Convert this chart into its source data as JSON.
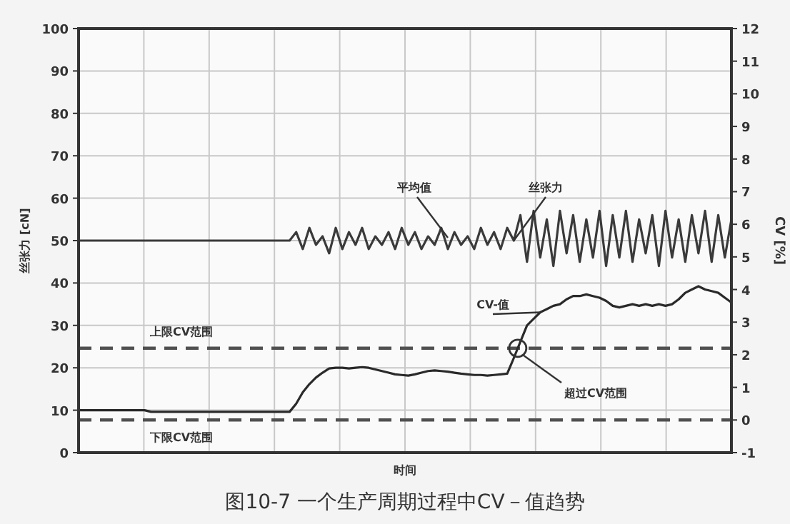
{
  "chart_data": {
    "type": "line",
    "title": "图10-7  一个生产周期过程中CV－值趋势",
    "xlabel": "时间",
    "ylabel": "丝张力 [cN]",
    "y2label": "CV [%]",
    "categories": [
      null,
      null,
      null,
      null,
      null,
      null,
      null,
      null,
      null,
      null,
      null,
      null,
      null,
      null,
      null,
      null,
      null,
      null,
      null,
      null,
      null,
      null,
      null,
      null,
      null,
      null,
      null,
      null,
      null,
      null,
      null,
      null,
      null,
      null,
      null,
      null,
      null,
      null,
      null,
      null,
      null,
      null,
      null,
      null,
      null,
      null,
      null,
      null,
      null,
      null,
      null,
      null,
      null,
      null,
      null,
      null,
      null,
      null,
      null,
      null,
      null,
      null,
      null,
      null,
      null,
      null,
      null,
      null,
      null,
      null,
      null,
      null,
      null,
      null,
      null,
      null,
      null,
      null,
      null,
      null,
      null,
      null,
      null,
      null,
      null,
      null,
      null,
      null,
      null,
      null,
      null,
      null,
      null,
      null,
      null,
      null,
      null,
      null,
      null,
      null
    ],
    "ylim": [
      0,
      100
    ],
    "yticks": [
      0,
      10,
      20,
      30,
      40,
      50,
      60,
      70,
      80,
      90,
      100
    ],
    "y2lim": [
      -1,
      12
    ],
    "y2ticks": [
      -1,
      0,
      1,
      2,
      3,
      4,
      5,
      6,
      7,
      8,
      9,
      10,
      11,
      12
    ],
    "grid": true,
    "series": [
      {
        "name": "丝张力",
        "color": "#3a3a3a",
        "values": [
          50,
          50,
          50,
          50,
          50,
          50,
          50,
          50,
          50,
          50,
          50,
          50,
          50,
          50,
          50,
          50,
          50,
          50,
          50,
          50,
          50,
          50,
          50,
          50,
          50,
          50,
          50,
          50,
          50,
          50,
          50,
          50,
          50,
          52,
          48,
          53,
          49,
          51,
          47,
          53,
          48,
          52,
          49,
          53,
          48,
          51,
          49,
          52,
          48,
          53,
          49,
          52,
          48,
          51,
          49,
          53,
          48,
          52,
          49,
          51,
          48,
          53,
          49,
          52,
          48,
          53,
          50,
          56,
          45,
          57,
          46,
          55,
          44,
          57,
          47,
          56,
          45,
          55,
          46,
          57,
          44,
          56,
          46,
          57,
          45,
          55,
          47,
          56,
          44,
          57,
          46,
          55,
          45,
          56,
          47,
          57,
          45,
          56,
          46,
          55
        ]
      },
      {
        "name": "CV-值",
        "color": "#2a2a2a",
        "axis": "y2",
        "values": [
          0.3,
          0.3,
          0.3,
          0.3,
          0.3,
          0.3,
          0.3,
          0.3,
          0.3,
          0.3,
          0.3,
          0.25,
          0.25,
          0.25,
          0.25,
          0.25,
          0.25,
          0.25,
          0.25,
          0.25,
          0.25,
          0.25,
          0.25,
          0.25,
          0.25,
          0.25,
          0.25,
          0.25,
          0.25,
          0.25,
          0.25,
          0.25,
          0.25,
          0.5,
          0.85,
          1.1,
          1.3,
          1.45,
          1.58,
          1.6,
          1.6,
          1.58,
          1.6,
          1.62,
          1.6,
          1.55,
          1.5,
          1.45,
          1.4,
          1.38,
          1.36,
          1.4,
          1.45,
          1.5,
          1.52,
          1.5,
          1.48,
          1.45,
          1.42,
          1.4,
          1.38,
          1.38,
          1.36,
          1.38,
          1.4,
          1.42,
          1.9,
          2.4,
          2.9,
          3.1,
          3.3,
          3.4,
          3.5,
          3.55,
          3.7,
          3.8,
          3.8,
          3.85,
          3.8,
          3.75,
          3.65,
          3.5,
          3.45,
          3.5,
          3.55,
          3.5,
          3.55,
          3.5,
          3.55,
          3.5,
          3.55,
          3.7,
          3.9,
          4.0,
          4.1,
          4.0,
          3.95,
          3.9,
          3.75,
          3.6
        ]
      }
    ],
    "ref_lines": [
      {
        "axis": "y2",
        "value": 2.2,
        "label": "上限CV范围",
        "color": "#505050",
        "line_style": "dashed"
      },
      {
        "axis": "y2",
        "value": 0,
        "label": "下限CV范围",
        "color": "#505050",
        "line_style": "dashed"
      }
    ],
    "annotations": [
      "平均值",
      "超过CV范围"
    ]
  }
}
